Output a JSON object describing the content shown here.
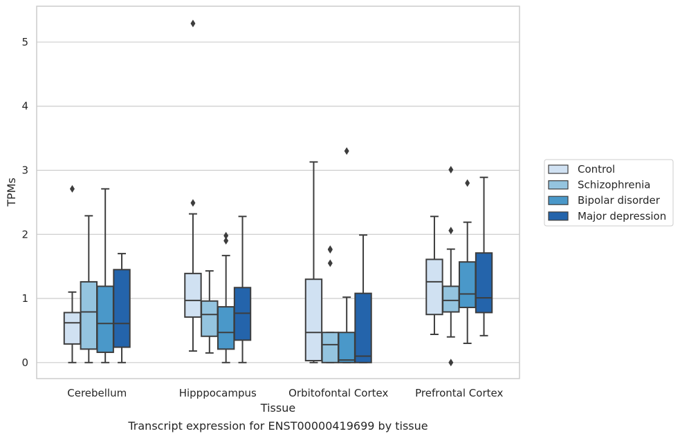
{
  "chart_data": {
    "type": "box",
    "title": "",
    "caption": "Transcript expression for ENST00000419699 by tissue",
    "xlabel": "Tissue",
    "ylabel": "TPMs",
    "ylim": [
      -0.25,
      5.56
    ],
    "yticks": [
      0,
      1,
      2,
      3,
      4,
      5
    ],
    "grid": "horizontal",
    "legend_position": "right",
    "categories": [
      "Cerebellum",
      "Hipppocampus",
      "Orbitofontal Cortex",
      "Prefrontal Cortex"
    ],
    "series": [
      {
        "name": "Control",
        "color": "#d0e1f2",
        "boxes": [
          {
            "whislo": 0.0,
            "q1": 0.29,
            "med": 0.62,
            "q3": 0.78,
            "whishi": 1.1,
            "fliers": [
              2.71
            ]
          },
          {
            "whislo": 0.18,
            "q1": 0.71,
            "med": 0.97,
            "q3": 1.39,
            "whishi": 2.32,
            "fliers": [
              2.49,
              5.29
            ]
          },
          {
            "whislo": 0.0,
            "q1": 0.03,
            "med": 0.47,
            "q3": 1.3,
            "whishi": 3.13,
            "fliers": []
          },
          {
            "whislo": 0.44,
            "q1": 0.75,
            "med": 1.26,
            "q3": 1.61,
            "whishi": 2.28,
            "fliers": []
          }
        ]
      },
      {
        "name": "Schizophrenia",
        "color": "#94c4df",
        "boxes": [
          {
            "whislo": 0.0,
            "q1": 0.21,
            "med": 0.79,
            "q3": 1.26,
            "whishi": 2.29,
            "fliers": []
          },
          {
            "whislo": 0.15,
            "q1": 0.41,
            "med": 0.75,
            "q3": 0.96,
            "whishi": 1.43,
            "fliers": []
          },
          {
            "whislo": 0.0,
            "q1": 0.0,
            "med": 0.28,
            "q3": 0.47,
            "whishi": 0.47,
            "fliers": [
              1.55,
              1.76,
              1.77
            ]
          },
          {
            "whislo": 0.4,
            "q1": 0.79,
            "med": 0.97,
            "q3": 1.19,
            "whishi": 1.77,
            "fliers": [
              0.0,
              2.06,
              3.01
            ]
          }
        ]
      },
      {
        "name": "Bipolar disorder",
        "color": "#4a98c9",
        "boxes": [
          {
            "whislo": 0.0,
            "q1": 0.16,
            "med": 0.61,
            "q3": 1.19,
            "whishi": 2.71,
            "fliers": []
          },
          {
            "whislo": 0.0,
            "q1": 0.21,
            "med": 0.47,
            "q3": 0.87,
            "whishi": 1.67,
            "fliers": [
              1.9,
              1.98
            ]
          },
          {
            "whislo": 0.0,
            "q1": 0.0,
            "med": 0.04,
            "q3": 0.47,
            "whishi": 1.02,
            "fliers": [
              3.3
            ]
          },
          {
            "whislo": 0.3,
            "q1": 0.86,
            "med": 1.07,
            "q3": 1.57,
            "whishi": 2.19,
            "fliers": [
              2.8
            ]
          }
        ]
      },
      {
        "name": "Major depression",
        "color": "#2464ab",
        "boxes": [
          {
            "whislo": 0.0,
            "q1": 0.24,
            "med": 0.61,
            "q3": 1.45,
            "whishi": 1.7,
            "fliers": []
          },
          {
            "whislo": 0.0,
            "q1": 0.35,
            "med": 0.77,
            "q3": 1.17,
            "whishi": 2.28,
            "fliers": []
          },
          {
            "whislo": 0.0,
            "q1": 0.0,
            "med": 0.1,
            "q3": 1.08,
            "whishi": 1.99,
            "fliers": []
          },
          {
            "whislo": 0.42,
            "q1": 0.78,
            "med": 1.01,
            "q3": 1.71,
            "whishi": 2.89,
            "fliers": []
          }
        ]
      }
    ]
  }
}
